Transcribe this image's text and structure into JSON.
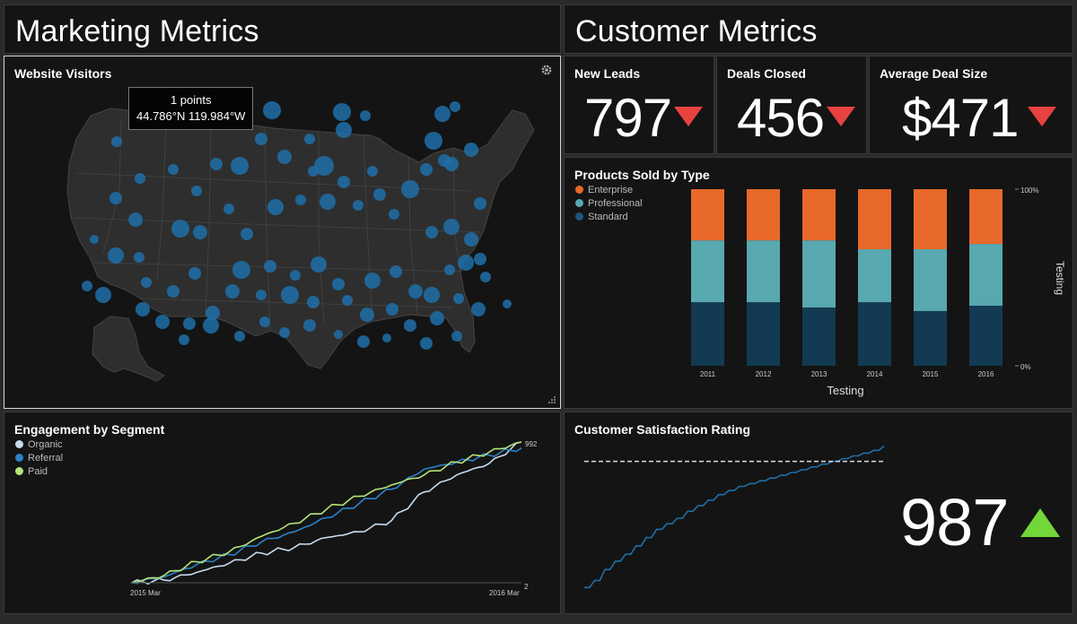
{
  "marketing": {
    "header": "Marketing Metrics",
    "visitors": {
      "title": "Website Visitors",
      "tooltip_line1": "1 points",
      "tooltip_line2": "44.786°N 119.984°W",
      "dot_color": "#1f6fa8"
    },
    "engagement": {
      "title": "Engagement by Segment",
      "legend": [
        {
          "label": "Organic",
          "color": "#c6dbef"
        },
        {
          "label": "Referral",
          "color": "#2b82c9"
        },
        {
          "label": "Paid",
          "color": "#b5e378"
        }
      ],
      "x_start": "2015 Mar",
      "x_end": "2016 Mar",
      "y_top_label": "992",
      "y_bottom_label": "2"
    }
  },
  "customer": {
    "header": "Customer Metrics",
    "kpis": [
      {
        "label": "New Leads",
        "value": "797",
        "trend": "down"
      },
      {
        "label": "Deals Closed",
        "value": "456",
        "trend": "down"
      },
      {
        "label": "Average Deal Size",
        "value": "$471",
        "trend": "down"
      }
    ],
    "products": {
      "title": "Products Sold by Type",
      "x_axis_label": "Testing",
      "y_axis_label": "Testing",
      "y_top": "100%",
      "y_bottom": "0%",
      "legend": [
        {
          "label": "Enterprise",
          "color": "#e8692a"
        },
        {
          "label": "Professional",
          "color": "#58a8b0"
        },
        {
          "label": "Standard",
          "color": "#123a52"
        }
      ]
    },
    "satisfaction": {
      "title": "Customer Satisfaction Rating",
      "value": "987",
      "trend": "up"
    }
  },
  "chart_data": [
    {
      "type": "bar",
      "title": "Products Sold by Type",
      "stacked": true,
      "normalized": true,
      "categories": [
        "2011",
        "2012",
        "2013",
        "2014",
        "2015",
        "2016"
      ],
      "series": [
        {
          "name": "Standard",
          "values": [
            36,
            36,
            33,
            36,
            31,
            34
          ]
        },
        {
          "name": "Professional",
          "values": [
            35,
            35,
            38,
            30,
            35,
            35
          ]
        },
        {
          "name": "Enterprise",
          "values": [
            29,
            29,
            29,
            34,
            34,
            31
          ]
        }
      ],
      "xlabel": "Testing",
      "ylabel": "Testing",
      "ylim": [
        0,
        100
      ]
    },
    {
      "type": "line",
      "title": "Engagement by Segment",
      "x": [
        "2015-03",
        "2015-04",
        "2015-05",
        "2015-06",
        "2015-07",
        "2015-08",
        "2015-09",
        "2015-10",
        "2015-11",
        "2015-12",
        "2016-01",
        "2016-02",
        "2016-03"
      ],
      "series": [
        {
          "name": "Organic",
          "values": [
            2,
            20,
            75,
            140,
            210,
            250,
            320,
            360,
            440,
            640,
            760,
            840,
            992
          ]
        },
        {
          "name": "Referral",
          "values": [
            2,
            45,
            130,
            200,
            290,
            360,
            460,
            560,
            660,
            800,
            850,
            900,
            950
          ]
        },
        {
          "name": "Paid",
          "values": [
            2,
            55,
            150,
            220,
            330,
            420,
            520,
            610,
            690,
            760,
            850,
            920,
            992
          ]
        }
      ],
      "ylim": [
        2,
        992
      ]
    },
    {
      "type": "line",
      "title": "Customer Satisfaction Rating",
      "x": [
        1,
        2,
        3,
        4,
        5,
        6,
        7,
        8,
        9,
        10,
        11,
        12,
        13,
        14,
        15,
        16,
        17,
        18,
        19,
        20,
        21,
        22,
        23,
        24,
        25,
        26,
        27,
        28,
        29,
        30
      ],
      "series": [
        {
          "name": "Rating",
          "values": [
            5,
            10,
            18,
            24,
            29,
            35,
            41,
            47,
            51,
            55,
            60,
            64,
            68,
            72,
            75,
            78,
            80,
            82,
            84,
            86,
            88,
            90,
            92,
            94,
            96,
            98,
            100,
            102,
            104,
            107
          ]
        }
      ],
      "reference_line": 96
    }
  ]
}
